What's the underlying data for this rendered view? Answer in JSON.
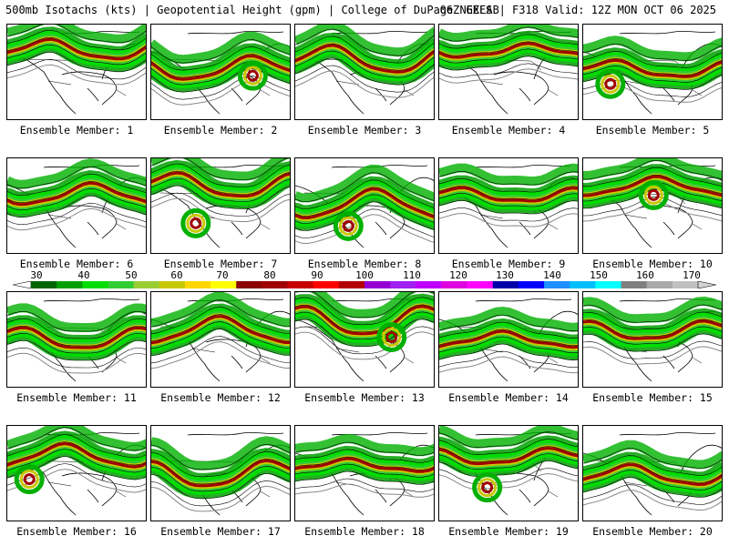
{
  "header": {
    "title_left": "500mb Isotachs (kts) | Geopotential Height (gpm) | College of DuPage NEXLAB",
    "title_right": "06Z GEFS | F318 Valid: 12Z MON OCT 06 2025"
  },
  "colorbar": {
    "labels": [
      "30",
      "40",
      "50",
      "60",
      "70",
      "80",
      "90",
      "100",
      "110",
      "120",
      "130",
      "140",
      "150",
      "160",
      "170"
    ],
    "colors": [
      "#006400",
      "#00a000",
      "#00dd00",
      "#32cd32",
      "#9acd32",
      "#c8c800",
      "#ffd700",
      "#ffff00",
      "#8b0000",
      "#a00000",
      "#c80000",
      "#ff0000",
      "#b40000",
      "#9400d3",
      "#a020f0",
      "#c000ff",
      "#e000e0",
      "#ff00ff",
      "#0000aa",
      "#0000ff",
      "#1e90ff",
      "#00bfff",
      "#00ffff",
      "#808080",
      "#a9a9a9",
      "#c0c0c0"
    ]
  },
  "members": [
    {
      "label": "Ensemble Member: 1"
    },
    {
      "label": "Ensemble Member: 2"
    },
    {
      "label": "Ensemble Member: 3"
    },
    {
      "label": "Ensemble Member: 4"
    },
    {
      "label": "Ensemble Member: 5"
    },
    {
      "label": "Ensemble Member: 6"
    },
    {
      "label": "Ensemble Member: 7"
    },
    {
      "label": "Ensemble Member: 8"
    },
    {
      "label": "Ensemble Member: 9"
    },
    {
      "label": "Ensemble Member: 10"
    },
    {
      "label": "Ensemble Member: 11"
    },
    {
      "label": "Ensemble Member: 12"
    },
    {
      "label": "Ensemble Member: 13"
    },
    {
      "label": "Ensemble Member: 14"
    },
    {
      "label": "Ensemble Member: 15"
    },
    {
      "label": "Ensemble Member: 16"
    },
    {
      "label": "Ensemble Member: 17"
    },
    {
      "label": "Ensemble Member: 18"
    },
    {
      "label": "Ensemble Member: 19"
    },
    {
      "label": "Ensemble Member: 20"
    }
  ]
}
